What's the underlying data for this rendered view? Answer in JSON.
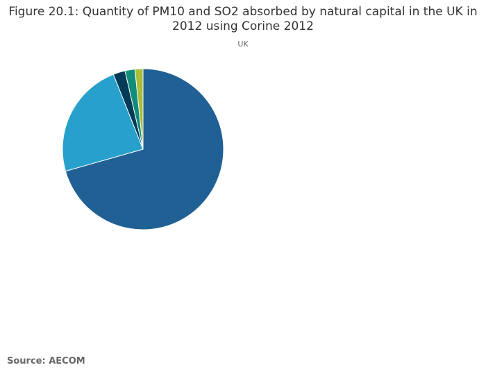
{
  "chart_data": {
    "type": "pie",
    "title": "Figure 20.1: Quantity of PM10 and SO2 absorbed by natural capital in the UK in 2012 using Corine 2012",
    "subtitle": "UK",
    "values": [
      70.6,
      23.4,
      2.4,
      2.0,
      1.6
    ],
    "colors": [
      "#206095",
      "#27a0cc",
      "#003c57",
      "#118c7b",
      "#a8bd3a"
    ],
    "start_angle_deg": 0,
    "direction": "clockwise"
  },
  "source": "Source: AECOM"
}
